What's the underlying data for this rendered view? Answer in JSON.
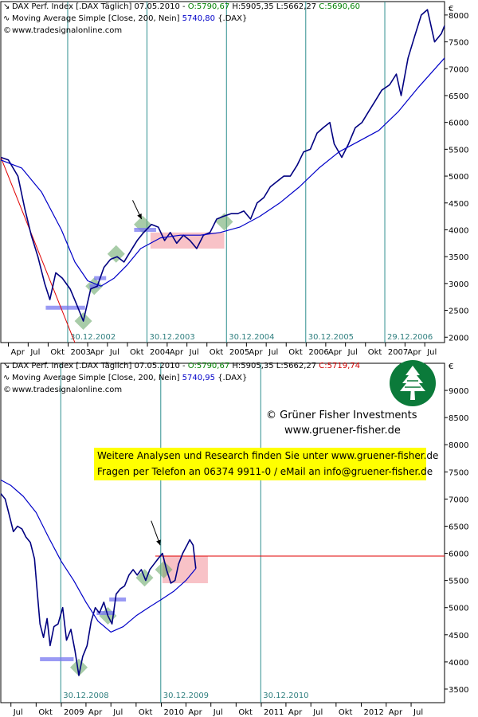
{
  "chart_data": [
    {
      "type": "line",
      "header": {
        "line1_prefix": "DAX Perf. Index [.DAX  Täglich] 07.05.2010 - ",
        "open": "O:5790,67",
        "hl": " H:5905,35 L:5662,27 ",
        "close": "C:5690,60",
        "line2_prefix": "Moving Average Simple [Close, 200, Nein] ",
        "ma_value": "5740,80",
        "line2_suffix": " {.DAX}",
        "line3": "www.tradesignalonline.com",
        "line1_icon": "↘",
        "line2_icon": "∿",
        "line3_icon": "©"
      },
      "currency_label": "€",
      "ylim": [
        1900,
        8250
      ],
      "yticks": [
        2000,
        2500,
        3000,
        3500,
        4000,
        4500,
        5000,
        5500,
        6000,
        6500,
        7000,
        7500,
        8000
      ],
      "ytick_labels": [
        "2000",
        "2500",
        "3000",
        "3500",
        "4000",
        "4500",
        "5000",
        "5500",
        "6000",
        "6500",
        "7000",
        "7500",
        "8000"
      ],
      "xlim": [
        "2002-02-25",
        "2007-09-30"
      ],
      "xtick_labels": [
        "Apr",
        "Jul",
        "Okt",
        "2003",
        "Apr",
        "Jul",
        "Okt",
        "2004",
        "Apr",
        "Jul",
        "Okt",
        "2005",
        "Apr",
        "Jul",
        "Okt",
        "2006",
        "Apr",
        "Jul",
        "Okt",
        "2007",
        "Apr",
        "Jul"
      ],
      "xtick_dates": [
        "2002-04-01",
        "2002-07-01",
        "2002-10-01",
        "2003-01-01",
        "2003-04-01",
        "2003-07-01",
        "2003-10-01",
        "2004-01-01",
        "2004-04-01",
        "2004-07-01",
        "2004-10-01",
        "2005-01-01",
        "2005-04-01",
        "2005-07-01",
        "2005-10-01",
        "2006-01-01",
        "2006-04-01",
        "2006-07-01",
        "2006-10-01",
        "2007-01-01",
        "2007-04-01",
        "2007-07-01"
      ],
      "vlines": [
        {
          "date": "2002-12-30",
          "label": "30.12.2002"
        },
        {
          "date": "2003-12-30",
          "label": "30.12.2003"
        },
        {
          "date": "2004-12-30",
          "label": "30.12.2004"
        },
        {
          "date": "2005-12-30",
          "label": "30.12.2005"
        },
        {
          "date": "2006-12-29",
          "label": "29.12.2006"
        }
      ],
      "series": [
        {
          "color": "#000080",
          "x": [
            "2002-02-25",
            "2002-04-01",
            "2002-05-15",
            "2002-06-15",
            "2002-07-15",
            "2002-08-15",
            "2002-09-15",
            "2002-10-09",
            "2002-11-05",
            "2002-12-05",
            "2003-01-10",
            "2003-02-05",
            "2003-03-12",
            "2003-04-15",
            "2003-05-15",
            "2003-06-15",
            "2003-07-15",
            "2003-08-15",
            "2003-09-15",
            "2003-10-15",
            "2003-11-15",
            "2003-12-15",
            "2004-01-20",
            "2004-02-20",
            "2004-03-20",
            "2004-04-15",
            "2004-05-15",
            "2004-06-15",
            "2004-07-15",
            "2004-08-15",
            "2004-09-15",
            "2004-10-15",
            "2004-11-15",
            "2004-12-15",
            "2005-01-20",
            "2005-02-20",
            "2005-03-20",
            "2005-04-20",
            "2005-05-20",
            "2005-06-20",
            "2005-07-20",
            "2005-08-20",
            "2005-09-20",
            "2005-10-20",
            "2005-11-20",
            "2005-12-20",
            "2006-01-20",
            "2006-02-20",
            "2006-03-20",
            "2006-04-20",
            "2006-05-10",
            "2006-06-14",
            "2006-07-15",
            "2006-08-15",
            "2006-09-15",
            "2006-10-15",
            "2006-11-15",
            "2006-12-15",
            "2007-01-20",
            "2007-02-20",
            "2007-03-14",
            "2007-04-15",
            "2007-05-15",
            "2007-06-15",
            "2007-07-13",
            "2007-08-15",
            "2007-09-15",
            "2007-09-30"
          ],
          "values": [
            5350,
            5300,
            5000,
            4400,
            3900,
            3500,
            3000,
            2700,
            3200,
            3100,
            2900,
            2650,
            2300,
            2900,
            2950,
            3300,
            3450,
            3500,
            3400,
            3600,
            3800,
            3950,
            4100,
            4050,
            3800,
            3950,
            3750,
            3900,
            3800,
            3650,
            3900,
            3950,
            4200,
            4250,
            4300,
            4300,
            4350,
            4200,
            4500,
            4600,
            4800,
            4900,
            5000,
            5000,
            5200,
            5450,
            5500,
            5800,
            5900,
            6000,
            5600,
            5350,
            5600,
            5900,
            6000,
            6200,
            6400,
            6600,
            6700,
            6900,
            6500,
            7200,
            7600,
            8000,
            8100,
            7500,
            7650,
            7800
          ]
        },
        {
          "name": "Moving Average Simple [Close, 200, Nein]",
          "color": "#0000c8",
          "x": [
            "2002-02-25",
            "2002-06-01",
            "2002-09-01",
            "2002-12-01",
            "2003-02-01",
            "2003-04-01",
            "2003-06-01",
            "2003-08-01",
            "2003-10-01",
            "2003-12-01",
            "2004-03-01",
            "2004-06-01",
            "2004-09-01",
            "2004-12-01",
            "2005-03-01",
            "2005-06-01",
            "2005-09-01",
            "2005-12-01",
            "2006-03-01",
            "2006-06-01",
            "2006-09-01",
            "2006-12-01",
            "2007-03-01",
            "2007-06-01",
            "2007-09-30"
          ],
          "values": [
            5300,
            5150,
            4700,
            4000,
            3400,
            3050,
            2950,
            3100,
            3350,
            3650,
            3850,
            3900,
            3900,
            3950,
            4050,
            4250,
            4500,
            4800,
            5150,
            5450,
            5650,
            5850,
            6200,
            6650,
            7200
          ]
        }
      ],
      "shapes": {
        "blue_lines": [
          {
            "x1": "2002-09-20",
            "x2": "2003-03-20",
            "y": 2550
          },
          {
            "x1": "2003-04-10",
            "x2": "2003-05-25",
            "y": 2950
          },
          {
            "x1": "2003-05-01",
            "x2": "2003-06-25",
            "y": 3100
          },
          {
            "x1": "2003-11-01",
            "x2": "2004-02-10",
            "y": 4000
          }
        ],
        "red_trend": {
          "x1": "2002-02-25",
          "y1": 5350,
          "x2": "2003-02-01",
          "y2": 1900
        },
        "red_box": {
          "x1": "2004-01-15",
          "x2": "2004-12-20",
          "y1": 3650,
          "y2": 3950
        },
        "green_diamonds": [
          {
            "x": "2003-03-12",
            "y": 2300
          },
          {
            "x": "2003-05-01",
            "y": 2950
          },
          {
            "x": "2003-08-10",
            "y": 3550
          },
          {
            "x": "2003-12-10",
            "y": 4100
          },
          {
            "x": "2004-12-20",
            "y": 4150
          }
        ],
        "arrow": {
          "x1": "2003-10-25",
          "y1": 4550,
          "x2": "2003-12-05",
          "y2": 4200
        }
      }
    },
    {
      "type": "line",
      "header": {
        "line1_prefix": "DAX Perf. Index [.DAX  Täglich] 07.05.2010 - ",
        "open": "O:5790,67",
        "hl": " H:5905,35 L:5662,27 ",
        "close": "C:5719,74",
        "line2_prefix": "Moving Average Simple [Close, 200, Nein] ",
        "ma_value": "5740,95",
        "line2_suffix": " {.DAX}",
        "line3": "www.tradesignalonline.com",
        "line1_icon": "↘",
        "line2_icon": "∿",
        "line3_icon": "©"
      },
      "currency_label": "€",
      "brand_line1": "© Grüner Fisher Investments",
      "brand_line2": "www.gruener-fisher.de",
      "info_line1": "Weitere Analysen und Research finden Sie unter www.gruener-fisher.de",
      "info_line2": "Fragen per Telefon an 06374 9911-0 / eMail an info@gruener-fisher.de",
      "ylim": [
        3250,
        9500
      ],
      "yticks": [
        3500,
        4000,
        4500,
        5000,
        5500,
        6000,
        6500,
        7000,
        7500,
        8000,
        8500,
        9000
      ],
      "ytick_labels": [
        "3500",
        "4000",
        "4500",
        "5000",
        "5500",
        "6000",
        "6500",
        "7000",
        "7500",
        "8000",
        "8500",
        "9000"
      ],
      "xlim": [
        "2008-05-25",
        "2012-10-31"
      ],
      "xtick_labels": [
        "Jul",
        "Okt",
        "2009",
        "Apr",
        "Jul",
        "Okt",
        "2010",
        "Apr",
        "Jul",
        "Okt",
        "2011",
        "Apr",
        "Jul",
        "Okt",
        "2012",
        "Apr",
        "Jul"
      ],
      "xtick_dates": [
        "2008-07-01",
        "2008-10-01",
        "2009-01-01",
        "2009-04-01",
        "2009-07-01",
        "2009-10-01",
        "2010-01-01",
        "2010-04-01",
        "2010-07-01",
        "2010-10-01",
        "2011-01-01",
        "2011-04-01",
        "2011-07-01",
        "2011-10-01",
        "2012-01-01",
        "2012-04-01",
        "2012-07-01"
      ],
      "vlines": [
        {
          "date": "2008-12-30",
          "label": "30.12.2008"
        },
        {
          "date": "2009-12-30",
          "label": "30.12.2009"
        },
        {
          "date": "2010-12-30",
          "label": "30.12.2010"
        }
      ],
      "series": [
        {
          "color": "#000080",
          "x": [
            "2008-05-25",
            "2008-06-10",
            "2008-06-25",
            "2008-07-10",
            "2008-07-25",
            "2008-08-10",
            "2008-08-25",
            "2008-09-10",
            "2008-09-25",
            "2008-10-05",
            "2008-10-15",
            "2008-10-28",
            "2008-11-10",
            "2008-11-21",
            "2008-12-05",
            "2008-12-20",
            "2009-01-06",
            "2009-01-20",
            "2009-02-05",
            "2009-02-20",
            "2009-03-06",
            "2009-03-20",
            "2009-04-05",
            "2009-04-20",
            "2009-05-05",
            "2009-05-20",
            "2009-06-05",
            "2009-06-20",
            "2009-07-05",
            "2009-07-20",
            "2009-08-05",
            "2009-08-20",
            "2009-09-05",
            "2009-09-20",
            "2009-10-05",
            "2009-10-20",
            "2009-11-05",
            "2009-11-20",
            "2009-12-05",
            "2009-12-20",
            "2010-01-05",
            "2010-01-20",
            "2010-02-05",
            "2010-02-20",
            "2010-03-05",
            "2010-03-20",
            "2010-04-05",
            "2010-04-15",
            "2010-04-27",
            "2010-05-07"
          ],
          "values": [
            7100,
            7000,
            6700,
            6400,
            6500,
            6450,
            6300,
            6200,
            5900,
            5300,
            4700,
            4450,
            4800,
            4300,
            4650,
            4700,
            5000,
            4400,
            4600,
            4200,
            3750,
            4100,
            4300,
            4750,
            5000,
            4900,
            5100,
            4850,
            4700,
            5250,
            5350,
            5400,
            5600,
            5700,
            5600,
            5700,
            5500,
            5700,
            5800,
            5900,
            6000,
            5700,
            5450,
            5500,
            5800,
            6000,
            6150,
            6250,
            6150,
            5720
          ]
        },
        {
          "name": "Moving Average Simple [Close, 200, Nein]",
          "color": "#0000c8",
          "x": [
            "2008-05-25",
            "2008-07-01",
            "2008-08-15",
            "2008-10-01",
            "2008-11-15",
            "2009-01-01",
            "2009-02-15",
            "2009-04-01",
            "2009-05-15",
            "2009-07-01",
            "2009-08-15",
            "2009-10-01",
            "2009-11-15",
            "2010-01-01",
            "2010-02-15",
            "2010-04-01",
            "2010-05-07"
          ],
          "values": [
            7350,
            7250,
            7050,
            6750,
            6300,
            5850,
            5500,
            5100,
            4750,
            4550,
            4650,
            4850,
            5000,
            5150,
            5300,
            5500,
            5720
          ]
        }
      ],
      "shapes": {
        "blue_lines": [
          {
            "x1": "2008-10-15",
            "x2": "2009-02-15",
            "y": 4050
          },
          {
            "x1": "2009-06-25",
            "x2": "2009-08-25",
            "y": 5150
          },
          {
            "x1": "2009-05-10",
            "x2": "2009-07-15",
            "y": 4900
          }
        ],
        "red_line": {
          "x1": "2009-12-10",
          "x2": "2012-10-31",
          "y": 5950
        },
        "red_box": {
          "x1": "2010-01-05",
          "x2": "2010-06-20",
          "y1": 5450,
          "y2": 5950
        },
        "green_diamonds": [
          {
            "x": "2009-03-06",
            "y": 3900
          },
          {
            "x": "2009-06-20",
            "y": 4850
          },
          {
            "x": "2009-11-01",
            "y": 5550
          },
          {
            "x": "2010-01-10",
            "y": 5700
          }
        ],
        "arrow": {
          "x1": "2009-11-25",
          "y1": 6600,
          "x2": "2009-12-28",
          "y2": 6150
        }
      }
    }
  ]
}
